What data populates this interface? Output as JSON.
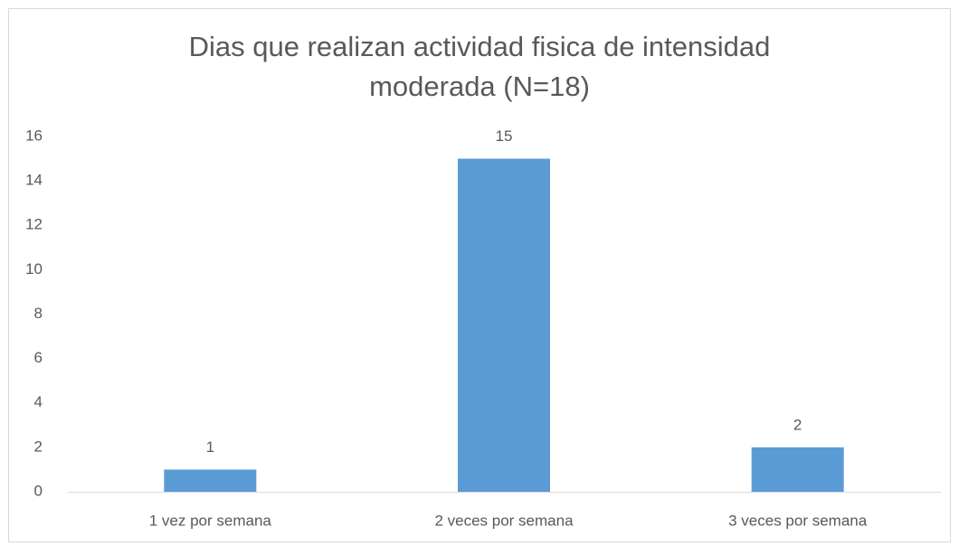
{
  "chart_data": {
    "type": "bar",
    "title": "Dias que realizan actividad fisica de intensidad moderada (N=18)",
    "categories": [
      "1 vez por semana",
      "2 veces por semana",
      "3 veces por semana"
    ],
    "values": [
      1,
      15,
      2
    ],
    "color": "#5b9bd5",
    "ylim": [
      0,
      16
    ],
    "yticks": [
      0,
      2,
      4,
      6,
      8,
      10,
      12,
      14,
      16
    ],
    "grid": false,
    "data_labels": true
  }
}
